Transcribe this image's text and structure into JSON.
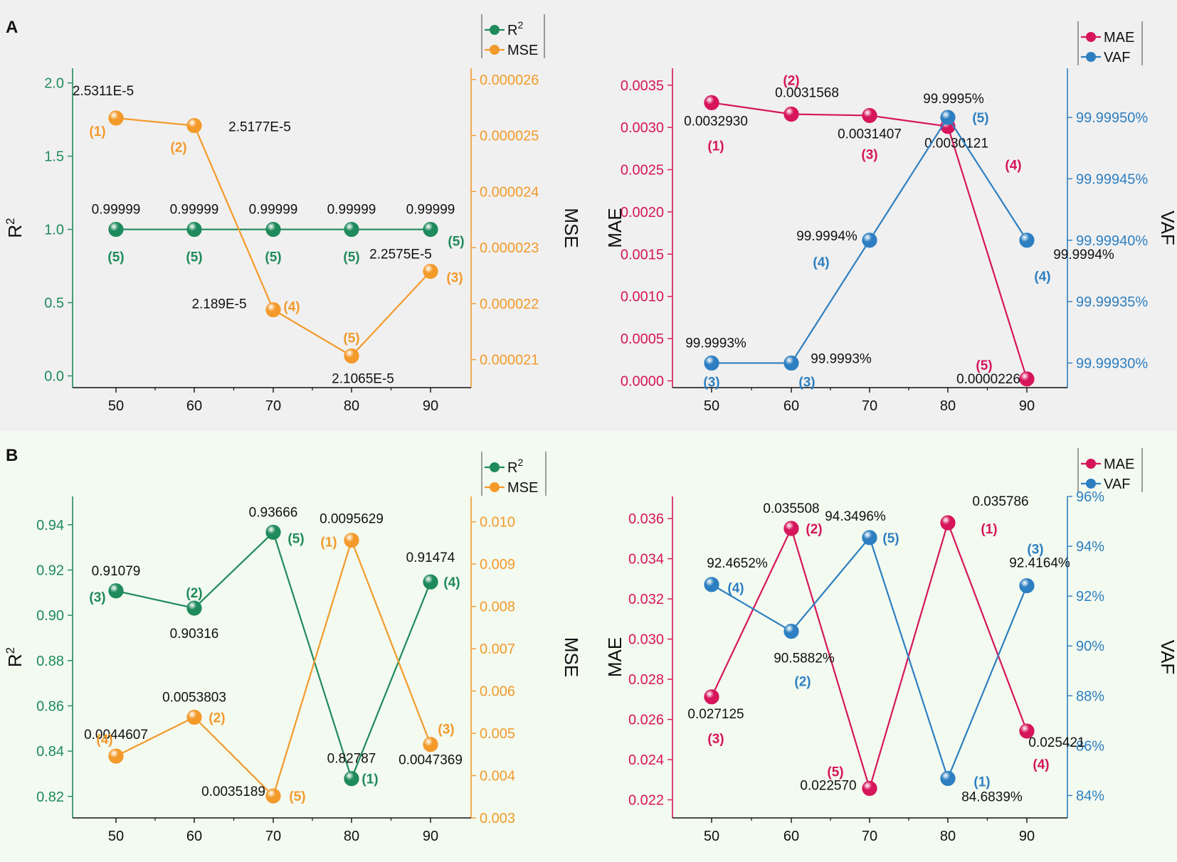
{
  "colors": {
    "r2": "#1f8a5b",
    "mse": "#f39a2b",
    "mae": "#d6155a",
    "vaf": "#2d7fc1",
    "axis_black": "#111111"
  },
  "chart_data": [
    {
      "panel": "A",
      "position": "left",
      "type": "line",
      "categories": [
        "50",
        "60",
        "70",
        "80",
        "90"
      ],
      "legend": [
        "R2",
        "MSE"
      ],
      "left_axis": {
        "title": "R2",
        "ticks": [
          "0.0",
          "0.5",
          "1.0",
          "1.5",
          "2.0"
        ],
        "ylim": [
          -0.08,
          2.1
        ]
      },
      "right_axis": {
        "title": "MSE",
        "ticks": [
          "0.000021",
          "0.000022",
          "0.000023",
          "0.000024",
          "0.000025",
          "0.000026"
        ],
        "ylim": [
          2.05e-05,
          2.62e-05
        ]
      },
      "series": [
        {
          "name": "R2",
          "axis": "left",
          "color_key": "r2",
          "values": [
            0.99999,
            0.99999,
            0.99999,
            0.99999,
            0.99999
          ],
          "labels": [
            "0.99999",
            "0.99999",
            "0.99999",
            "0.99999",
            "0.99999"
          ],
          "ranks": [
            "(5)",
            "(5)",
            "(5)",
            "(5)",
            "(5)"
          ]
        },
        {
          "name": "MSE",
          "axis": "right",
          "color_key": "mse",
          "values": [
            2.5311e-05,
            2.5177e-05,
            2.189e-05,
            2.1065e-05,
            2.2575e-05
          ],
          "labels": [
            "2.5311E-5",
            "2.5177E-5",
            "2.189E-5",
            "2.1065E-5",
            "2.2575E-5"
          ],
          "ranks": [
            "(1)",
            "(2)",
            "(4)",
            "(5)",
            "(3)"
          ]
        }
      ]
    },
    {
      "panel": "A",
      "position": "right",
      "type": "line",
      "categories": [
        "50",
        "60",
        "70",
        "80",
        "90"
      ],
      "legend": [
        "MAE",
        "VAF"
      ],
      "left_axis": {
        "title": "MAE",
        "ticks": [
          "0.0000",
          "0.0005",
          "0.0010",
          "0.0015",
          "0.0020",
          "0.0025",
          "0.0030",
          "0.0035"
        ],
        "ylim": [
          -8e-05,
          0.0037
        ]
      },
      "right_axis": {
        "title": "VAF",
        "ticks": [
          "99.99930%",
          "99.99935%",
          "99.99940%",
          "99.99945%",
          "99.99950%"
        ],
        "ylim": [
          99.99928,
          99.99954
        ]
      },
      "series": [
        {
          "name": "MAE",
          "axis": "left",
          "color_key": "mae",
          "values": [
            0.003293,
            0.0031568,
            0.0031407,
            0.0030121,
            2.26e-05
          ],
          "labels": [
            "0.0032930",
            "0.0031568",
            "0.0031407",
            "0.0030121",
            "0.0000226"
          ],
          "ranks": [
            "(1)",
            "(2)",
            "(3)",
            "(4)",
            "(5)"
          ]
        },
        {
          "name": "VAF",
          "axis": "right",
          "color_key": "vaf",
          "values": [
            99.9993,
            99.9993,
            99.9994,
            99.9995,
            99.9994
          ],
          "labels": [
            "99.9993%",
            "99.9993%",
            "99.9994%",
            "99.9995%",
            "99.9994%"
          ],
          "ranks": [
            "(3)",
            "(3)",
            "(4)",
            "(5)",
            "(4)"
          ]
        }
      ]
    },
    {
      "panel": "B",
      "position": "left",
      "type": "line",
      "categories": [
        "50",
        "60",
        "70",
        "80",
        "90"
      ],
      "legend": [
        "R2",
        "MSE"
      ],
      "left_axis": {
        "title": "R2",
        "ticks": [
          "0.82",
          "0.84",
          "0.86",
          "0.88",
          "0.90",
          "0.92",
          "0.94"
        ],
        "ylim": [
          0.8105,
          0.9525
        ]
      },
      "right_axis": {
        "title": "MSE",
        "ticks": [
          "0.003",
          "0.004",
          "0.005",
          "0.006",
          "0.007",
          "0.008",
          "0.009",
          "0.010"
        ],
        "ylim": [
          0.003,
          0.0106
        ]
      },
      "series": [
        {
          "name": "R2",
          "axis": "left",
          "color_key": "r2",
          "values": [
            0.91079,
            0.90316,
            0.93666,
            0.82787,
            0.91474
          ],
          "labels": [
            "0.91079",
            "0.90316",
            "0.93666",
            "0.82787",
            "0.91474"
          ],
          "ranks": [
            "(3)",
            "(2)",
            "(5)",
            "(1)",
            "(4)"
          ]
        },
        {
          "name": "MSE",
          "axis": "right",
          "color_key": "mse",
          "values": [
            0.0044607,
            0.0053803,
            0.0035189,
            0.0095629,
            0.0047369
          ],
          "labels": [
            "0.0044607",
            "0.0053803",
            "0.0035189",
            "0.0095629",
            "0.0047369"
          ],
          "ranks": [
            "(4)",
            "(2)",
            "(5)",
            "(1)",
            "(3)"
          ]
        }
      ]
    },
    {
      "panel": "B",
      "position": "right",
      "type": "line",
      "categories": [
        "50",
        "60",
        "70",
        "80",
        "90"
      ],
      "legend": [
        "MAE",
        "VAF"
      ],
      "left_axis": {
        "title": "MAE",
        "ticks": [
          "0.022",
          "0.024",
          "0.026",
          "0.028",
          "0.030",
          "0.032",
          "0.034",
          "0.036"
        ],
        "ylim": [
          0.0211,
          0.0371
        ]
      },
      "right_axis": {
        "title": "VAF",
        "ticks": [
          "84%",
          "86%",
          "88%",
          "90%",
          "92%",
          "94%",
          "96%"
        ],
        "ylim": [
          83.1,
          96.0
        ]
      },
      "series": [
        {
          "name": "MAE",
          "axis": "left",
          "color_key": "mae",
          "values": [
            0.027125,
            0.035508,
            0.02257,
            0.035786,
            0.025421
          ],
          "labels": [
            "0.027125",
            "0.035508",
            "0.022570",
            "0.035786",
            "0.025421"
          ],
          "ranks": [
            "(3)",
            "(2)",
            "(5)",
            "(1)",
            "(4)"
          ]
        },
        {
          "name": "VAF",
          "axis": "right",
          "color_key": "vaf",
          "values": [
            92.4652,
            90.5882,
            94.3496,
            84.6839,
            92.4164
          ],
          "labels": [
            "92.4652%",
            "90.5882%",
            "94.3496%",
            "84.6839%",
            "92.4164%"
          ],
          "ranks": [
            "(4)",
            "(2)",
            "(5)",
            "(1)",
            "(3)"
          ]
        }
      ]
    }
  ],
  "panel_labels": [
    "A",
    "B"
  ]
}
